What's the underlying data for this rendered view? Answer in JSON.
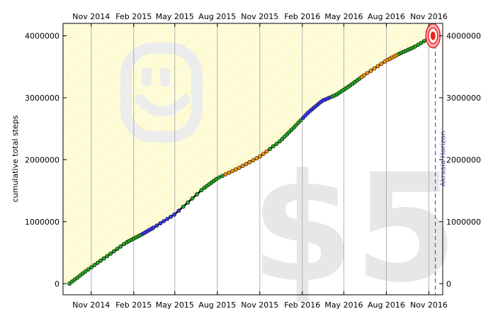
{
  "chart_data": {
    "type": "line",
    "title": "",
    "ylabel": "cumulative total steps",
    "x_tick_labels": [
      "Nov 2014",
      "Feb 2015",
      "May 2015",
      "Aug 2015",
      "Nov 2015",
      "Feb 2016",
      "May 2016",
      "Aug 2016",
      "Nov 2016"
    ],
    "x_tick_dates": [
      "2014-11-01",
      "2015-02-01",
      "2015-05-01",
      "2015-08-01",
      "2015-11-01",
      "2016-02-01",
      "2016-05-01",
      "2016-08-01",
      "2016-11-01"
    ],
    "x_range": [
      "2014-09-01",
      "2016-12-01"
    ],
    "y_ticks": [
      0,
      1000000,
      2000000,
      3000000,
      4000000
    ],
    "y_tick_labels": [
      "0",
      "1000000",
      "2000000",
      "3000000",
      "4000000"
    ],
    "ylim": [
      -180000,
      4200000
    ],
    "grid": "vertical",
    "secondary_y_axis": true,
    "series": [
      {
        "x": [
          "2014-09-15",
          "2014-10-20",
          "2014-12-01",
          "2015-01-15",
          "2015-02-15",
          "2015-03-15",
          "2015-05-01",
          "2015-07-01",
          "2015-08-01",
          "2015-09-15",
          "2015-11-01",
          "2015-12-15",
          "2016-01-15",
          "2016-02-15",
          "2016-03-15",
          "2016-04-15",
          "2016-05-15",
          "2016-06-15",
          "2016-08-01",
          "2016-09-01",
          "2016-10-01",
          "2016-11-10"
        ],
        "y": [
          0,
          200000,
          420000,
          660000,
          780000,
          900000,
          1120000,
          1530000,
          1700000,
          1860000,
          2050000,
          2300000,
          2530000,
          2770000,
          2950000,
          3050000,
          3200000,
          3370000,
          3600000,
          3720000,
          3820000,
          4000000
        ]
      }
    ],
    "annotations": [
      {
        "type": "vertical-line",
        "x": "2016-11-15",
        "label": "Akrasia Horizon"
      },
      {
        "type": "target",
        "x": "2016-11-10",
        "y": 4000000
      }
    ],
    "watermark": "$5",
    "colors": {
      "line": "#000000",
      "dot_green": "#22aa22",
      "dot_blue": "#3a3aff",
      "dot_orange": "#ff9900",
      "yellow_road": "#f7f2a0",
      "horizon": "#5555cc",
      "target": "#ee2222"
    }
  }
}
